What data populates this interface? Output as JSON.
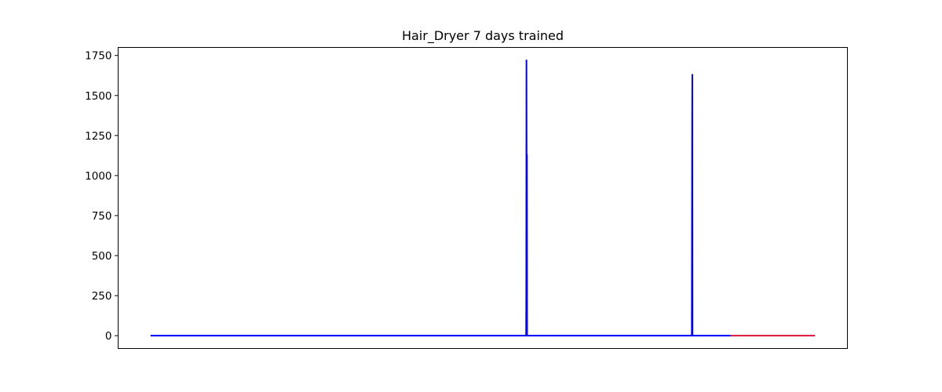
{
  "chart_data": {
    "type": "line",
    "title": "Hair_Dryer 7 days trained",
    "xlabel": "",
    "ylabel": "",
    "xlim": [
      -100,
      8900
    ],
    "ylim": [
      -80,
      1800
    ],
    "yticks": [
      0,
      250,
      500,
      750,
      1000,
      1250,
      1500,
      1750
    ],
    "xticks_visible": false,
    "grid": false,
    "series": [
      {
        "color": "#0000ff",
        "points": [
          [
            300,
            0
          ],
          [
            4935,
            0
          ],
          [
            4937,
            280
          ],
          [
            4939,
            1720
          ],
          [
            4941,
            1150
          ],
          [
            4943,
            0
          ],
          [
            4945,
            1130
          ],
          [
            4947,
            0
          ],
          [
            6980,
            0
          ],
          [
            6982,
            650
          ],
          [
            6984,
            1310
          ],
          [
            6986,
            1630
          ],
          [
            6988,
            0
          ],
          [
            7460,
            0
          ]
        ]
      },
      {
        "color": "#dc143c",
        "points": [
          [
            7460,
            0
          ],
          [
            8500,
            0
          ]
        ]
      }
    ]
  }
}
